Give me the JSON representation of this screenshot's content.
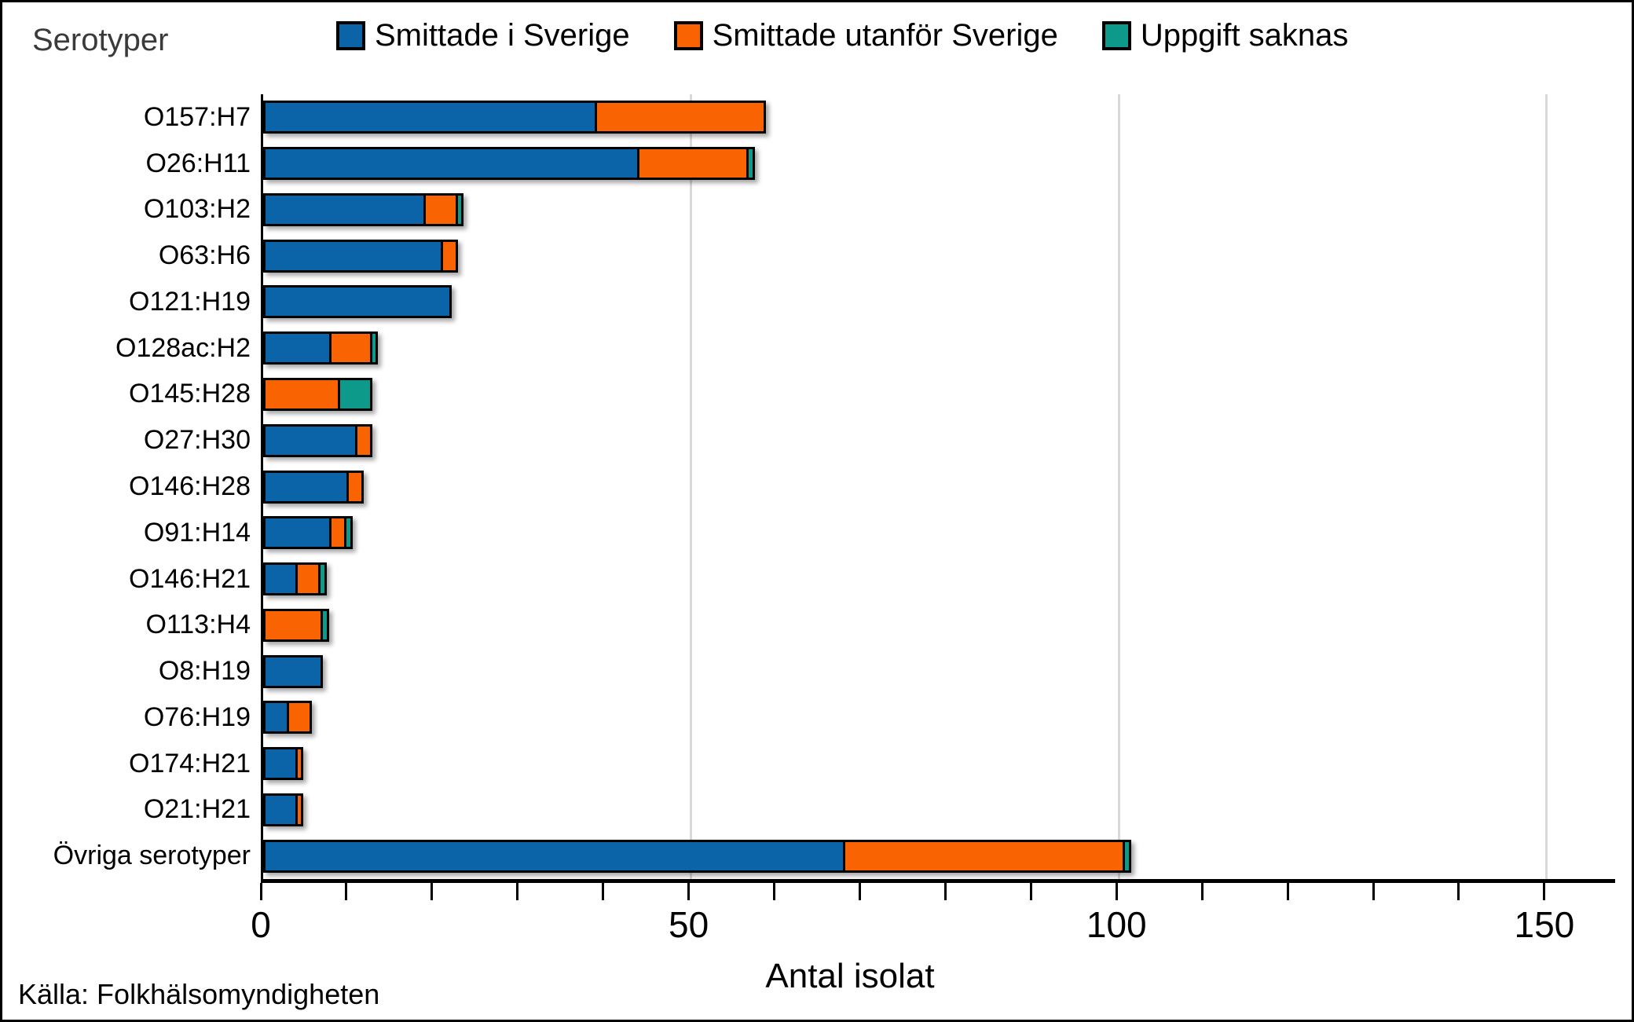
{
  "chart": {
    "y_axis_title": "Serotyper",
    "x_axis_title": "Antal isolat",
    "source": "Källa: Folkhälsomyndigheten"
  },
  "chart_data": {
    "type": "bar",
    "orientation": "horizontal",
    "stacked": true,
    "title": "Serotyper",
    "xlabel": "Antal isolat",
    "ylabel": "Serotyper",
    "xlim": [
      0,
      158
    ],
    "x_ticks": [
      0,
      50,
      100,
      150
    ],
    "x_minor_tick_step": 10,
    "grid": "vertical-gridlines-at-major-ticks",
    "legend_position": "top",
    "categories": [
      "O157:H7",
      "O26:H11",
      "O103:H2",
      "O63:H6",
      "O121:H19",
      "O128ac:H2",
      "O145:H28",
      "O27:H30",
      "O146:H28",
      "O91:H14",
      "O146:H21",
      "O113:H4",
      "O8:H19",
      "O76:H19",
      "O174:H21",
      "O21:H21",
      "Övriga serotyper"
    ],
    "series": [
      {
        "name": "Smittade i Sverige",
        "color": "#0B63A8",
        "values": [
          39,
          44,
          19,
          21,
          22,
          8,
          0,
          11,
          10,
          8,
          4,
          0,
          7,
          3,
          4,
          4,
          68
        ]
      },
      {
        "name": "Smittade utanför Sverige",
        "color": "#F96302",
        "values": [
          20,
          13,
          4,
          2,
          0,
          5,
          9,
          2,
          2,
          2,
          3,
          7,
          0,
          3,
          1,
          1,
          33
        ]
      },
      {
        "name": "Uppgift saknas",
        "color": "#0E9A8A",
        "values": [
          0,
          1,
          1,
          0,
          0,
          1,
          4,
          0,
          0,
          1,
          1,
          1,
          0,
          0,
          0,
          0,
          1
        ]
      }
    ],
    "source": "Källa: Folkhälsomyndigheten"
  },
  "colors": {
    "background": "#FFFFFF",
    "frame": "#000000",
    "axis": "#000000",
    "gridline": "#D9D9D9",
    "bar_border": "#000000",
    "y_title_text": "#3A3A3A",
    "label_text": "#000000"
  }
}
